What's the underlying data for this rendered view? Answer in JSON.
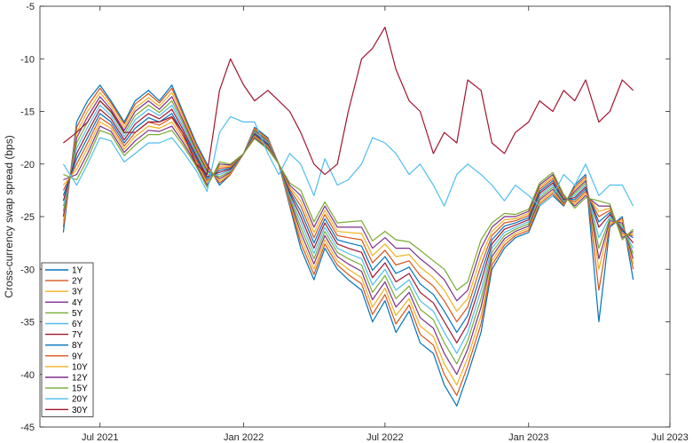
{
  "chart_data": {
    "type": "line",
    "title": "",
    "xlabel": "",
    "ylabel": "Cross-currency swap spread (bps)",
    "xlim": [
      "2021-04-15",
      "2023-07-01"
    ],
    "ylim": [
      -45,
      -5
    ],
    "grid": false,
    "legend_position": "bottom-left",
    "x_ticks": [
      {
        "date": "2021-07-01",
        "label": "Jul 2021"
      },
      {
        "date": "2022-01-01",
        "label": "Jan 2022"
      },
      {
        "date": "2022-07-01",
        "label": "Jul 2022"
      },
      {
        "date": "2023-01-01",
        "label": "Jan 2023"
      },
      {
        "date": "2023-07-01",
        "label": "Jul 2023"
      }
    ],
    "y_ticks": [
      -45,
      -40,
      -35,
      -30,
      -25,
      -20,
      -15,
      -10,
      -5
    ],
    "x": [
      "2021-05-15",
      "2021-06-01",
      "2021-06-15",
      "2021-07-01",
      "2021-07-15",
      "2021-08-01",
      "2021-08-15",
      "2021-09-01",
      "2021-09-15",
      "2021-10-01",
      "2021-10-15",
      "2021-11-01",
      "2021-11-15",
      "2021-12-01",
      "2021-12-15",
      "2022-01-01",
      "2022-01-15",
      "2022-02-01",
      "2022-02-15",
      "2022-03-01",
      "2022-03-15",
      "2022-04-01",
      "2022-04-15",
      "2022-05-01",
      "2022-05-15",
      "2022-06-01",
      "2022-06-15",
      "2022-07-01",
      "2022-07-15",
      "2022-08-01",
      "2022-08-15",
      "2022-09-01",
      "2022-09-15",
      "2022-10-01",
      "2022-10-15",
      "2022-11-01",
      "2022-11-15",
      "2022-12-01",
      "2022-12-15",
      "2023-01-01",
      "2023-01-15",
      "2023-02-01",
      "2023-02-15",
      "2023-03-01",
      "2023-03-15",
      "2023-04-01",
      "2023-04-15",
      "2023-05-01",
      "2023-05-15"
    ],
    "series": [
      {
        "name": "1Y",
        "color": "#0072BD",
        "values": [
          -26.5,
          -16,
          -14,
          -12.5,
          -14,
          -16,
          -14,
          -13,
          -14,
          -12.5,
          -15,
          -18,
          -20,
          -22,
          -21,
          -19,
          -16.5,
          -17.5,
          -20,
          -24,
          -28,
          -31,
          -28,
          -30,
          -31,
          -32,
          -35,
          -33,
          -36,
          -34,
          -37,
          -38,
          -41,
          -43,
          -40,
          -36,
          -30,
          -28,
          -27,
          -26.5,
          -24,
          -23,
          -24,
          -22,
          -21,
          -35,
          -26,
          -25,
          -31
        ]
      },
      {
        "name": "2Y",
        "color": "#D95319",
        "values": [
          -26,
          -16.5,
          -14.5,
          -12.8,
          -14.2,
          -16.2,
          -14.3,
          -13.3,
          -14.2,
          -12.8,
          -15.2,
          -18.2,
          -20.2,
          -21.8,
          -21,
          -19,
          -16.6,
          -17.6,
          -20,
          -23.8,
          -27.5,
          -30.5,
          -27.6,
          -29.6,
          -30.5,
          -31.4,
          -34.3,
          -32.4,
          -35.2,
          -33.4,
          -36.2,
          -37.2,
          -40,
          -42,
          -39.2,
          -35.2,
          -29.6,
          -27.7,
          -26.8,
          -26.3,
          -23.8,
          -22.8,
          -23.9,
          -22.2,
          -21.2,
          -32,
          -25.8,
          -25.2,
          -30
        ]
      },
      {
        "name": "3Y",
        "color": "#EDB120",
        "values": [
          -25.5,
          -17,
          -15,
          -13.2,
          -14.5,
          -16.5,
          -14.7,
          -13.7,
          -14.5,
          -13.2,
          -15.5,
          -18.4,
          -20.4,
          -21.6,
          -20.9,
          -19,
          -16.7,
          -17.7,
          -20,
          -23.6,
          -27,
          -30,
          -27.2,
          -29.2,
          -30,
          -30.8,
          -33.6,
          -31.8,
          -34.4,
          -32.8,
          -35.4,
          -36.4,
          -39,
          -41,
          -38.4,
          -34.4,
          -29.2,
          -27.4,
          -26.6,
          -26.1,
          -23.6,
          -22.6,
          -23.8,
          -22.4,
          -21.4,
          -30,
          -25.6,
          -25.4,
          -29.5
        ]
      },
      {
        "name": "4Y",
        "color": "#7E2F8E",
        "values": [
          -25,
          -17.5,
          -15.5,
          -13.6,
          -14.8,
          -16.8,
          -15,
          -14,
          -14.8,
          -13.6,
          -15.8,
          -18.6,
          -20.6,
          -21.4,
          -20.8,
          -19,
          -16.8,
          -17.8,
          -20,
          -23.4,
          -26.5,
          -29.5,
          -26.8,
          -28.8,
          -29.5,
          -30.2,
          -32.9,
          -31.2,
          -33.6,
          -32.2,
          -34.6,
          -35.6,
          -38,
          -40,
          -37.6,
          -33.6,
          -28.8,
          -27.1,
          -26.4,
          -25.9,
          -23.4,
          -22.4,
          -23.7,
          -22.6,
          -21.6,
          -29,
          -25.4,
          -25.6,
          -29
        ]
      },
      {
        "name": "5Y",
        "color": "#77AC30",
        "values": [
          -24.5,
          -18,
          -16,
          -14,
          -15.1,
          -17.1,
          -15.4,
          -14.4,
          -15.1,
          -14,
          -16.1,
          -18.8,
          -20.8,
          -21.2,
          -20.7,
          -19,
          -16.9,
          -17.9,
          -20,
          -23.2,
          -26,
          -29,
          -26.4,
          -28.4,
          -29,
          -29.6,
          -32.2,
          -30.6,
          -32.8,
          -31.6,
          -33.8,
          -34.8,
          -37,
          -39,
          -36.8,
          -32.8,
          -28.4,
          -26.8,
          -26.2,
          -25.7,
          -23.2,
          -22.2,
          -23.6,
          -22.8,
          -21.8,
          -28,
          -25.2,
          -25.8,
          -28.5
        ]
      },
      {
        "name": "6Y",
        "color": "#4DBEEE",
        "values": [
          -24,
          -18.5,
          -16.5,
          -14.4,
          -15.4,
          -17.4,
          -15.8,
          -14.8,
          -15.4,
          -14.4,
          -16.4,
          -19,
          -21,
          -21,
          -20.6,
          -19,
          -17,
          -18,
          -20,
          -23,
          -25.5,
          -28.5,
          -26,
          -28,
          -28.5,
          -29,
          -31.5,
          -30,
          -32,
          -31,
          -33,
          -34,
          -36,
          -38,
          -36,
          -32,
          -28,
          -26.5,
          -26,
          -25.5,
          -23,
          -22,
          -23.5,
          -23,
          -22,
          -27,
          -25,
          -26,
          -28
        ]
      },
      {
        "name": "7Y",
        "color": "#A2142F",
        "values": [
          -23.5,
          -19,
          -17,
          -14.8,
          -15.7,
          -17.7,
          -16.2,
          -15.2,
          -15.7,
          -14.8,
          -16.7,
          -19.2,
          -21.2,
          -20.8,
          -20.5,
          -19,
          -17.1,
          -18.1,
          -20,
          -22.8,
          -25,
          -28,
          -25.6,
          -27.6,
          -28,
          -28.4,
          -30.8,
          -29.4,
          -31.2,
          -30.4,
          -32.2,
          -33.2,
          -35,
          -37,
          -35.2,
          -31.2,
          -27.6,
          -26.2,
          -25.8,
          -25.3,
          -22.8,
          -21.8,
          -23.4,
          -23.2,
          -22.2,
          -26,
          -24.8,
          -26.2,
          -27.5
        ]
      },
      {
        "name": "8Y",
        "color": "#0072BD",
        "values": [
          -23,
          -19.5,
          -17.5,
          -15.2,
          -16,
          -18,
          -16.6,
          -15.6,
          -16,
          -15.2,
          -17,
          -19.4,
          -21.4,
          -20.6,
          -20.4,
          -19,
          -17.2,
          -18.2,
          -20,
          -22.6,
          -24.5,
          -27.5,
          -25.2,
          -27.2,
          -27.5,
          -27.8,
          -30.1,
          -28.8,
          -30.4,
          -29.8,
          -31.4,
          -32.4,
          -34,
          -36,
          -34.4,
          -30.4,
          -27.2,
          -25.9,
          -25.6,
          -25.1,
          -22.6,
          -21.6,
          -23.3,
          -23.4,
          -22.4,
          -25.5,
          -24.6,
          -26.4,
          -27
        ]
      },
      {
        "name": "9Y",
        "color": "#D95319",
        "values": [
          -22.5,
          -20,
          -18,
          -15.6,
          -16.3,
          -18.3,
          -17,
          -16,
          -16.3,
          -15.6,
          -17.3,
          -19.6,
          -21.6,
          -20.4,
          -20.3,
          -19,
          -17.3,
          -18.3,
          -20,
          -22.4,
          -24,
          -27,
          -24.8,
          -26.8,
          -27,
          -27.2,
          -29.4,
          -28.2,
          -29.6,
          -29.2,
          -30.6,
          -31.6,
          -33,
          -35,
          -33.6,
          -29.6,
          -26.8,
          -25.6,
          -25.4,
          -24.9,
          -22.4,
          -21.4,
          -23.2,
          -23.6,
          -22.6,
          -25,
          -24.4,
          -26.6,
          -26.8
        ]
      },
      {
        "name": "10Y",
        "color": "#EDB120",
        "values": [
          -22,
          -20.5,
          -18.5,
          -16,
          -16.6,
          -18.6,
          -17.4,
          -16.4,
          -16.6,
          -16,
          -17.6,
          -19.8,
          -21.8,
          -20.2,
          -20.2,
          -19,
          -17.4,
          -18.4,
          -20,
          -22.2,
          -23.5,
          -26.5,
          -24.4,
          -26.4,
          -26.5,
          -26.6,
          -28.7,
          -27.6,
          -28.8,
          -28.6,
          -29.8,
          -30.8,
          -32,
          -34,
          -32.8,
          -28.8,
          -26.4,
          -25.3,
          -25.2,
          -24.7,
          -22.2,
          -21.2,
          -23.1,
          -23.8,
          -22.8,
          -24.5,
          -24.2,
          -26.8,
          -26.6
        ]
      },
      {
        "name": "12Y",
        "color": "#7E2F8E",
        "values": [
          -21.5,
          -21,
          -19,
          -16.4,
          -16.9,
          -18.9,
          -17.8,
          -16.8,
          -16.9,
          -16.4,
          -17.9,
          -20,
          -22,
          -20,
          -20.1,
          -19,
          -17.5,
          -18.5,
          -20,
          -22,
          -23,
          -26,
          -24,
          -26,
          -26,
          -26,
          -28,
          -27,
          -28,
          -28,
          -29,
          -30,
          -31,
          -33,
          -32,
          -28,
          -26,
          -25,
          -25,
          -24.5,
          -22,
          -21,
          -23,
          -24,
          -23,
          -24,
          -24,
          -27,
          -26.4
        ]
      },
      {
        "name": "15Y",
        "color": "#77AC30",
        "values": [
          -21,
          -21.5,
          -19.5,
          -16.8,
          -17.2,
          -19.2,
          -18.2,
          -17.2,
          -17.2,
          -16.8,
          -18.2,
          -20.2,
          -22.2,
          -19.8,
          -20,
          -19,
          -17.6,
          -18.6,
          -20,
          -21.8,
          -22.5,
          -25.5,
          -23.6,
          -25.6,
          -25.5,
          -25.4,
          -27.3,
          -26.4,
          -27.2,
          -27.4,
          -28.2,
          -29.2,
          -30,
          -32,
          -31.2,
          -27.2,
          -25.6,
          -24.7,
          -24.8,
          -24.3,
          -21.8,
          -20.8,
          -22.9,
          -24.2,
          -23.2,
          -23.5,
          -23.8,
          -27.2,
          -26.2
        ]
      },
      {
        "name": "20Y",
        "color": "#4DBEEE",
        "values": [
          -20,
          -22,
          -20,
          -17.5,
          -17.8,
          -19.8,
          -19,
          -18,
          -18,
          -17.5,
          -18.8,
          -20.6,
          -22.6,
          -17,
          -15.5,
          -16,
          -16,
          -19,
          -21,
          -19,
          -20,
          -23,
          -19.5,
          -22,
          -21.5,
          -20,
          -17.5,
          -18,
          -19,
          -21,
          -20,
          -22,
          -24,
          -21,
          -20,
          -21,
          -22,
          -23.5,
          -22,
          -23,
          -24,
          -23,
          -21,
          -22,
          -20,
          -23,
          -22,
          -22,
          -24
        ]
      },
      {
        "name": "30Y",
        "color": "#A2142F",
        "values": [
          -18,
          -17,
          -16,
          -14,
          -15,
          -17,
          -17,
          -16,
          -16,
          -15.5,
          -17,
          -20,
          -21,
          -13,
          -10,
          -12.5,
          -14,
          -13,
          -14,
          -15,
          -17,
          -20,
          -21,
          -20,
          -15,
          -10,
          -9,
          -7,
          -11,
          -14,
          -15,
          -19,
          -17,
          -18,
          -12,
          -13,
          -18,
          -19,
          -17,
          -16,
          -14,
          -15,
          -13,
          -14,
          -12,
          -16,
          -15,
          -12,
          -13
        ]
      }
    ]
  }
}
